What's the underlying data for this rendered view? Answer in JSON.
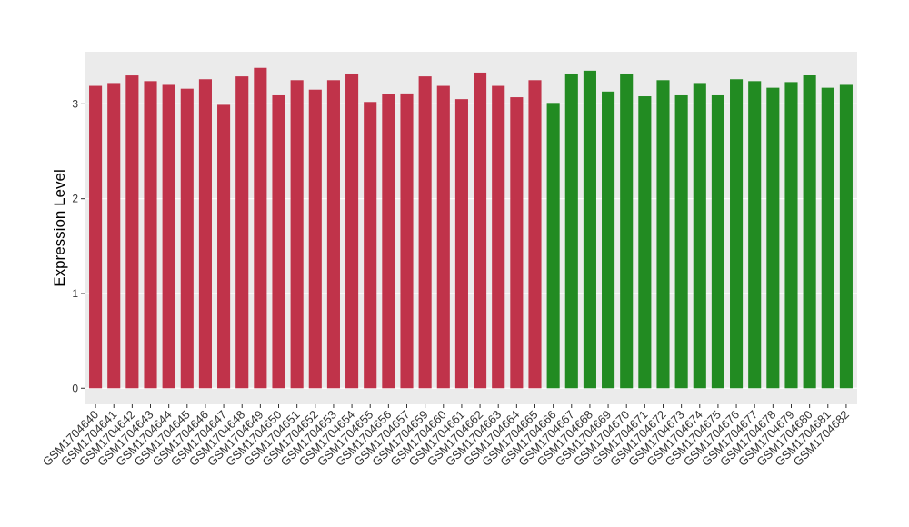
{
  "chart_data": {
    "type": "bar",
    "y_label": "Expression Level",
    "categories": [
      "GSM1704640",
      "GSM1704641",
      "GSM1704642",
      "GSM1704643",
      "GSM1704644",
      "GSM1704645",
      "GSM1704646",
      "GSM1704647",
      "GSM1704648",
      "GSM1704649",
      "GSM1704650",
      "GSM1704651",
      "GSM1704652",
      "GSM1704653",
      "GSM1704654",
      "GSM1704655",
      "GSM1704656",
      "GSM1704657",
      "GSM1704659",
      "GSM1704660",
      "GSM1704661",
      "GSM1704662",
      "GSM1704663",
      "GSM1704664",
      "GSM1704665",
      "GSM1704666",
      "GSM1704667",
      "GSM1704668",
      "GSM1704669",
      "GSM1704670",
      "GSM1704671",
      "GSM1704672",
      "GSM1704673",
      "GSM1704674",
      "GSM1704675",
      "GSM1704676",
      "GSM1704677",
      "GSM1704678",
      "GSM1704679",
      "GSM1704680",
      "GSM1704681",
      "GSM1704682"
    ],
    "values": [
      3.19,
      3.22,
      3.3,
      3.24,
      3.21,
      3.16,
      3.26,
      2.99,
      3.29,
      3.38,
      3.09,
      3.25,
      3.15,
      3.25,
      3.32,
      3.02,
      3.1,
      3.11,
      3.29,
      3.19,
      3.05,
      3.33,
      3.19,
      3.07,
      3.25,
      3.01,
      3.32,
      3.35,
      3.13,
      3.32,
      3.08,
      3.25,
      3.09,
      3.22,
      3.09,
      3.26,
      3.24,
      3.17,
      3.23,
      3.31,
      3.17,
      3.21
    ],
    "colors": [
      "#c0334a",
      "#c0334a",
      "#c0334a",
      "#c0334a",
      "#c0334a",
      "#c0334a",
      "#c0334a",
      "#c0334a",
      "#c0334a",
      "#c0334a",
      "#c0334a",
      "#c0334a",
      "#c0334a",
      "#c0334a",
      "#c0334a",
      "#c0334a",
      "#c0334a",
      "#c0334a",
      "#c0334a",
      "#c0334a",
      "#c0334a",
      "#c0334a",
      "#c0334a",
      "#c0334a",
      "#c0334a",
      "#228b22",
      "#228b22",
      "#228b22",
      "#228b22",
      "#228b22",
      "#228b22",
      "#228b22",
      "#228b22",
      "#228b22",
      "#228b22",
      "#228b22",
      "#228b22",
      "#228b22",
      "#228b22",
      "#228b22",
      "#228b22",
      "#228b22"
    ],
    "ylim": [
      -0.17,
      3.55
    ],
    "yticks": [
      0,
      1,
      2,
      3
    ],
    "grid": true
  }
}
